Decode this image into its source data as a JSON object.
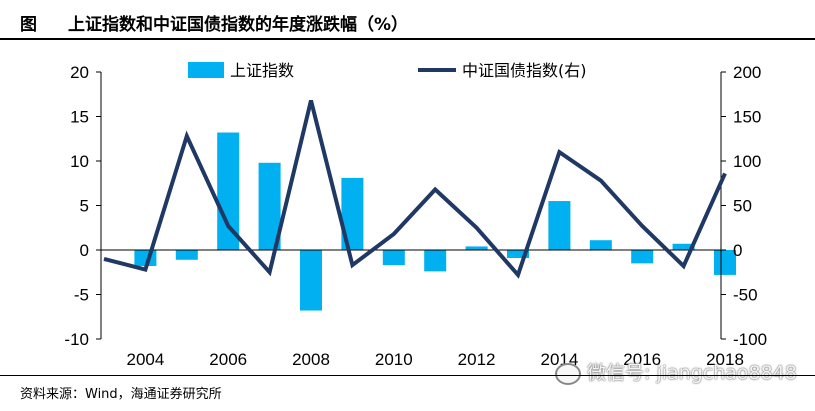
{
  "header": {
    "prefix": "图",
    "title": "上证指数和中证国债指数的年度涨跌幅（%）"
  },
  "footer": {
    "source": "资料来源：Wind，海通证券研究所",
    "watermark": "微信号: jiangchao8848"
  },
  "colors": {
    "bar": "#00b0f0",
    "line": "#1f3864",
    "axis": "#000000"
  },
  "chart_data": {
    "type": "bar",
    "x": [
      2003,
      2004,
      2005,
      2006,
      2007,
      2008,
      2009,
      2010,
      2011,
      2012,
      2013,
      2014,
      2015,
      2016,
      2017,
      2018
    ],
    "xticks": [
      "2004",
      "2006",
      "2008",
      "2010",
      "2012",
      "2014",
      "2016",
      "2018"
    ],
    "series": [
      {
        "name": "上证指数",
        "type": "bar",
        "axis": "left",
        "values": [
          null,
          -1.8,
          -1.1,
          13.2,
          9.8,
          -6.8,
          8.1,
          -1.7,
          -2.4,
          0.4,
          -0.9,
          5.5,
          1.1,
          -1.5,
          0.7,
          -2.8
        ]
      },
      {
        "name": "中证国债指数(右)",
        "type": "line",
        "axis": "right",
        "values": [
          -10,
          -22,
          128,
          27,
          -25,
          168,
          -17,
          18,
          68,
          25,
          -28,
          110,
          78,
          27,
          -18,
          86
        ]
      }
    ],
    "y_left": {
      "ticks": [
        20,
        15,
        10,
        5,
        0,
        -5,
        -10
      ],
      "ylim": [
        -10,
        20
      ]
    },
    "y_right": {
      "ticks": [
        200,
        150,
        100,
        50,
        0,
        -50,
        -100
      ],
      "ylim": [
        -100,
        200
      ]
    },
    "legend": "top-center",
    "grid": false
  }
}
